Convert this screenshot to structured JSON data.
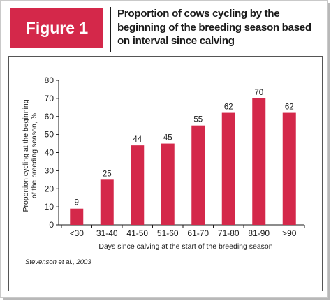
{
  "figure": {
    "tab_label": "Figure 1",
    "title": "Proportion of cows cycling by the beginning of the breeding season based on interval since calving",
    "source": "Stevenson et al., 2003",
    "accent_color": "#d4284a"
  },
  "chart_data": {
    "type": "bar",
    "categories": [
      "<30",
      "31-40",
      "41-50",
      "51-60",
      "61-70",
      "71-80",
      "81-90",
      ">90"
    ],
    "values": [
      9,
      25,
      44,
      45,
      55,
      62,
      70,
      62
    ],
    "data_labels": [
      "9",
      "25",
      "44",
      "45",
      "55",
      "62",
      "70",
      "62"
    ],
    "xlabel": "Days since calving at the start of the breeding season",
    "ylabel": [
      "Proportion cycling at the beginning",
      "of the breeding season, %"
    ],
    "ylim": [
      0,
      80
    ],
    "yticks": [
      0,
      10,
      20,
      30,
      40,
      50,
      60,
      70,
      80
    ],
    "bar_color": "#d4284a",
    "grid": false,
    "legend": "none"
  }
}
